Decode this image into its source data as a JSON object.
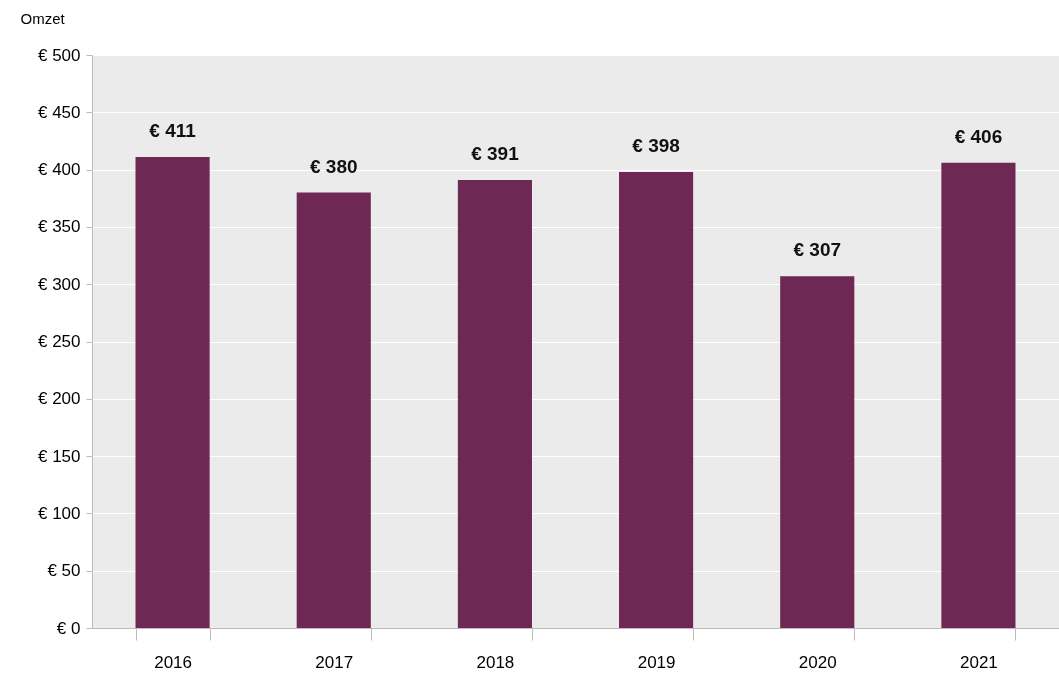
{
  "chart_data": {
    "type": "bar",
    "ylabel": "Omzet",
    "categories": [
      "2016",
      "2017",
      "2018",
      "2019",
      "2020",
      "2021"
    ],
    "values": [
      411,
      380,
      391,
      398,
      307,
      406
    ],
    "value_labels": [
      "€ 411",
      "€ 380",
      "€ 391",
      "€ 398",
      "€ 307",
      "€ 406"
    ],
    "color": "#6e2854",
    "ylim": [
      0,
      500
    ],
    "yticks": [
      {
        "value": 0,
        "label": "€ 0"
      },
      {
        "value": 50,
        "label": "€ 50"
      },
      {
        "value": 100,
        "label": "€ 100"
      },
      {
        "value": 150,
        "label": "€ 150"
      },
      {
        "value": 200,
        "label": "€ 200"
      },
      {
        "value": 250,
        "label": "€ 250"
      },
      {
        "value": 300,
        "label": "€ 300"
      },
      {
        "value": 350,
        "label": "€ 350"
      },
      {
        "value": 400,
        "label": "€ 400"
      },
      {
        "value": 450,
        "label": "€ 450"
      },
      {
        "value": 500,
        "label": "€ 500"
      }
    ],
    "grid": "y"
  }
}
